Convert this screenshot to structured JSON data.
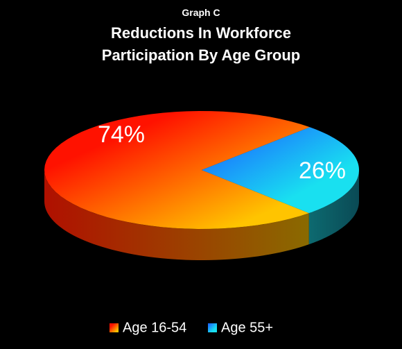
{
  "chart_data": {
    "type": "pie",
    "subtitle": "Graph C",
    "title": "Reductions In Workforce Participation By Age Group",
    "categories": [
      "Age 16-54",
      "Age 55+"
    ],
    "values": [
      74,
      26
    ],
    "value_labels": [
      "74%",
      "26%"
    ],
    "colors": [
      "#ff1a00",
      "#1a7cff"
    ],
    "legend": "bottom"
  }
}
